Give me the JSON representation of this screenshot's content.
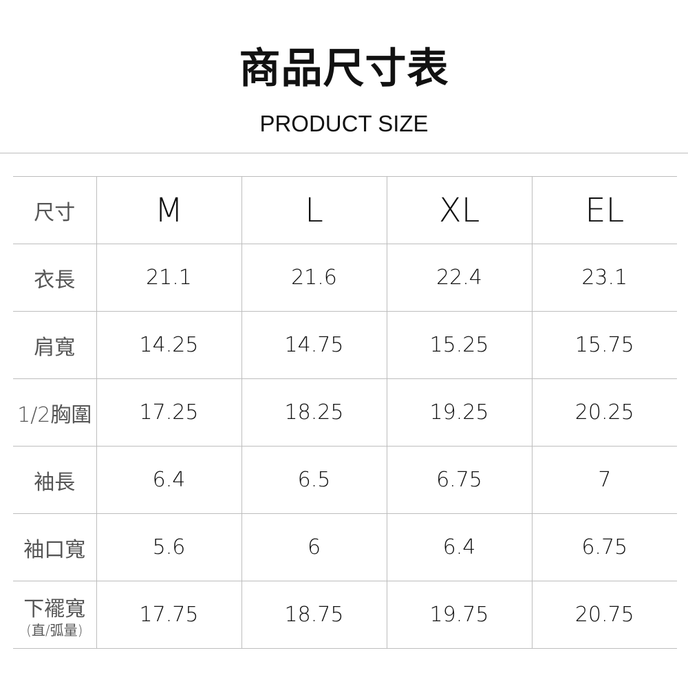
{
  "header": {
    "title": "商品尺寸表",
    "subtitle": "PRODUCT SIZE"
  },
  "table": {
    "corner_label": "尺寸",
    "sizes": [
      "M",
      "L",
      "XL",
      "EL"
    ],
    "rows": [
      {
        "label": "衣長",
        "values": [
          "21.1",
          "21.6",
          "22.4",
          "23.1"
        ]
      },
      {
        "label": "肩寬",
        "values": [
          "14.25",
          "14.75",
          "15.25",
          "15.75"
        ]
      },
      {
        "label": "1/2胸圍",
        "values": [
          "17.25",
          "18.25",
          "19.25",
          "20.25"
        ]
      },
      {
        "label": "袖長",
        "values": [
          "6.4",
          "6.5",
          "6.75",
          "7"
        ]
      },
      {
        "label": "袖口寬",
        "values": [
          "5.6",
          "6",
          "6.4",
          "6.75"
        ]
      },
      {
        "label": "下襬寬",
        "sublabel": "(直/弧量)",
        "values": [
          "17.75",
          "18.75",
          "19.75",
          "20.75"
        ]
      }
    ]
  }
}
